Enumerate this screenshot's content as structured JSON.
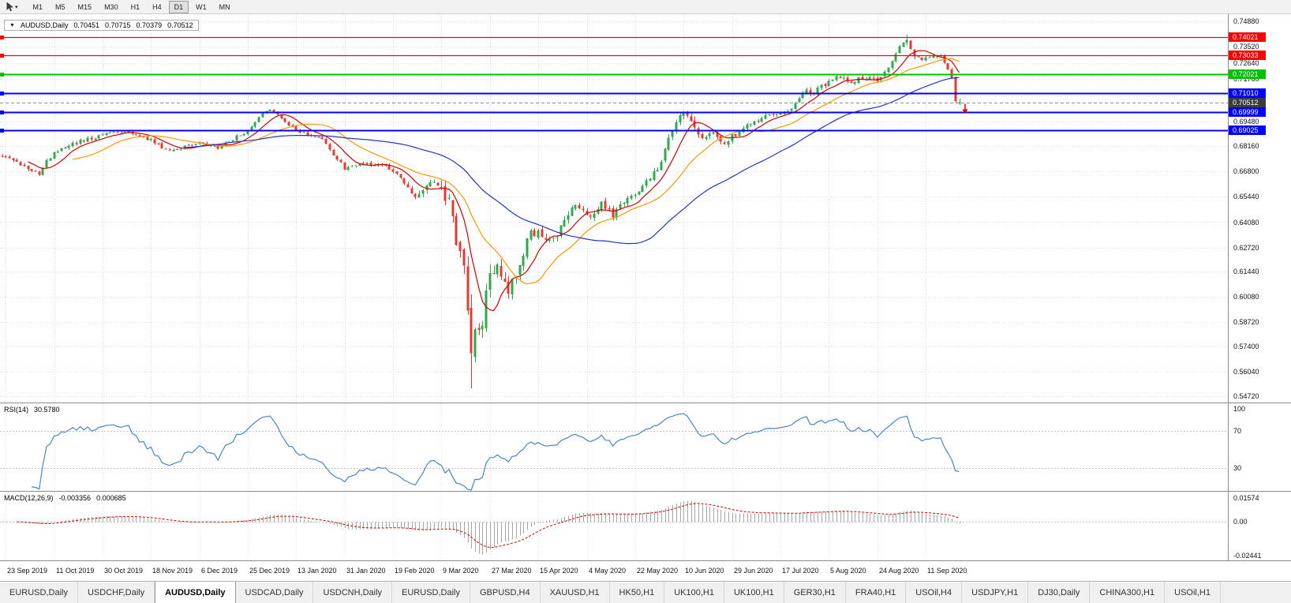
{
  "icons": {
    "expand": "▼",
    "caret": "▾"
  },
  "toolbar": {
    "timeframes": [
      {
        "label": "M1",
        "active": false
      },
      {
        "label": "M5",
        "active": false
      },
      {
        "label": "M15",
        "active": false
      },
      {
        "label": "M30",
        "active": false
      },
      {
        "label": "H1",
        "active": false
      },
      {
        "label": "H4",
        "active": false
      },
      {
        "label": "D1",
        "active": true
      },
      {
        "label": "W1",
        "active": false
      },
      {
        "label": "MN",
        "active": false
      }
    ]
  },
  "chart": {
    "header": {
      "symbol": "AUDUSD,Daily",
      "open": "0.70451",
      "high": "0.70715",
      "low": "0.70379",
      "close": "0.70512"
    },
    "price_axis_ticks": [
      "0.74880",
      "0.73520",
      "0.72640",
      "0.71760",
      "0.70880",
      "0.69480",
      "0.68160",
      "0.66800",
      "0.65440",
      "0.64080",
      "0.62720",
      "0.61440",
      "0.60080",
      "0.58720",
      "0.57400",
      "0.56040",
      "0.54720"
    ],
    "levels": [
      {
        "value": 0.74021,
        "label": "0.74021",
        "color": "#ff0000",
        "width": 1.2
      },
      {
        "value": 0.73033,
        "label": "0.73033",
        "color": "#ff0000",
        "width": 1.2
      },
      {
        "value": 0.72021,
        "label": "0.72021",
        "color": "#00c000",
        "width": 2
      },
      {
        "value": 0.7101,
        "label": "0.71010",
        "color": "#0000ff",
        "width": 2
      },
      {
        "value": 0.69999,
        "label": "0.69999",
        "color": "#0000ff",
        "width": 2
      },
      {
        "value": 0.69025,
        "label": "0.69025",
        "color": "#0000ff",
        "width": 2
      }
    ],
    "current_price": {
      "value": 0.70512,
      "label": "0.70512",
      "tag_color": "#3c3c3c"
    }
  },
  "chart_data": {
    "type": "candlestick",
    "symbol": "AUDUSD",
    "timeframe": "Daily",
    "bars": 258,
    "bar_spacing": 4.72,
    "seed": 1337,
    "price_scale": {
      "max": 0.7525,
      "min": 0.5439
    },
    "up_color": "#2fa84f",
    "down_color": "#e8382f",
    "anchors": [
      [
        0,
        0.677,
        0.0022
      ],
      [
        6,
        0.6712,
        0.0024
      ],
      [
        10,
        0.6672,
        0.0024
      ],
      [
        14,
        0.679,
        0.0024
      ],
      [
        20,
        0.6832,
        0.0022
      ],
      [
        27,
        0.688,
        0.002
      ],
      [
        33,
        0.6895,
        0.0018
      ],
      [
        40,
        0.6848,
        0.0018
      ],
      [
        45,
        0.679,
        0.0018
      ],
      [
        53,
        0.6832,
        0.0016
      ],
      [
        58,
        0.6806,
        0.0016
      ],
      [
        66,
        0.6902,
        0.0016
      ],
      [
        70,
        0.7,
        0.0015
      ],
      [
        72,
        0.7016,
        0.0015
      ],
      [
        79,
        0.6902,
        0.0016
      ],
      [
        86,
        0.6852,
        0.0016
      ],
      [
        92,
        0.6695,
        0.0018
      ],
      [
        97,
        0.6722,
        0.0016
      ],
      [
        103,
        0.6716,
        0.0016
      ],
      [
        108,
        0.6626,
        0.0022
      ],
      [
        111,
        0.6542,
        0.003
      ],
      [
        115,
        0.6602,
        0.0042
      ],
      [
        118,
        0.6586,
        0.007
      ],
      [
        120,
        0.649,
        0.0085
      ],
      [
        122,
        0.6312,
        0.01
      ],
      [
        124,
        0.615,
        0.012
      ],
      [
        126,
        0.5762,
        0.015
      ],
      [
        127,
        0.5802,
        0.013
      ],
      [
        129,
        0.5862,
        0.011
      ],
      [
        131,
        0.613,
        0.009
      ],
      [
        133,
        0.6152,
        0.007
      ],
      [
        136,
        0.6022,
        0.006
      ],
      [
        139,
        0.6182,
        0.0055
      ],
      [
        142,
        0.6352,
        0.005
      ],
      [
        144,
        0.6362,
        0.0046
      ],
      [
        147,
        0.6302,
        0.0044
      ],
      [
        150,
        0.6372,
        0.004
      ],
      [
        154,
        0.6512,
        0.004
      ],
      [
        157,
        0.6442,
        0.0038
      ],
      [
        161,
        0.6502,
        0.0035
      ],
      [
        164,
        0.6446,
        0.0034
      ],
      [
        168,
        0.6532,
        0.0032
      ],
      [
        170,
        0.6546,
        0.003
      ],
      [
        174,
        0.6652,
        0.0032
      ],
      [
        177,
        0.6732,
        0.0034
      ],
      [
        179,
        0.6872,
        0.0036
      ],
      [
        183,
        0.7002,
        0.0035
      ],
      [
        185,
        0.6932,
        0.004
      ],
      [
        187,
        0.6862,
        0.0038
      ],
      [
        191,
        0.6882,
        0.0032
      ],
      [
        194,
        0.6842,
        0.003
      ],
      [
        196,
        0.6866,
        0.0028
      ],
      [
        200,
        0.6922,
        0.0026
      ],
      [
        204,
        0.6966,
        0.0024
      ],
      [
        208,
        0.6982,
        0.0024
      ],
      [
        212,
        0.7012,
        0.0024
      ],
      [
        215,
        0.7112,
        0.0026
      ],
      [
        218,
        0.7102,
        0.0026
      ],
      [
        221,
        0.7152,
        0.0026
      ],
      [
        224,
        0.7186,
        0.0024
      ],
      [
        228,
        0.7162,
        0.0024
      ],
      [
        231,
        0.7182,
        0.0024
      ],
      [
        235,
        0.7172,
        0.0024
      ],
      [
        238,
        0.7242,
        0.0024
      ],
      [
        241,
        0.7366,
        0.0024
      ],
      [
        243,
        0.7396,
        0.0026
      ],
      [
        245,
        0.7312,
        0.0028
      ],
      [
        247,
        0.7282,
        0.0024
      ],
      [
        249,
        0.7302,
        0.0022
      ],
      [
        252,
        0.7306,
        0.0022
      ],
      [
        254,
        0.7232,
        0.0026
      ],
      [
        255,
        0.7172,
        0.0026
      ],
      [
        256,
        0.7064,
        0.0024
      ],
      [
        257,
        0.70512,
        0.002
      ]
    ],
    "spikes": [
      {
        "bar": 126,
        "low": 0.5515
      },
      {
        "bar": 243,
        "high": 0.7414
      }
    ],
    "last_candle": {
      "open": 0.70451,
      "high": 0.70715,
      "low": 0.70379,
      "close": 0.70512
    },
    "moving_averages": [
      {
        "period": 8,
        "color": "#d40000"
      },
      {
        "period": 20,
        "color": "#ff9900"
      },
      {
        "period": 50,
        "color": "#2233cc"
      }
    ],
    "x_labels": [
      "23 Sep 2019",
      "11 Oct 2019",
      "30 Oct 2019",
      "18 Nov 2019",
      "6 Dec 2019",
      "25 Dec 2019",
      "13 Jan 2020",
      "31 Jan 2020",
      "19 Feb 2020",
      "9 Mar 2020",
      "27 Mar 2020",
      "15 Apr 2020",
      "4 May 2020",
      "22 May 2020",
      "10 Jun 2020",
      "29 Jun 2020",
      "17 Jul 2020",
      "5 Aug 2020",
      "24 Aug 2020",
      "11 Sep 2020"
    ],
    "first_label_bar": 1,
    "label_step": 13
  },
  "rsi": {
    "name": "RSI(14)",
    "value": "30.5780",
    "period": 14,
    "color": "#4c86c8",
    "guides": [
      70,
      30
    ],
    "axis": [
      {
        "label": "100",
        "value": 100
      },
      {
        "label": "70",
        "value": 70
      },
      {
        "label": "30",
        "value": 30
      }
    ],
    "scale_max": 100,
    "scale_min": 5.5
  },
  "macd": {
    "name": "MACD(12,26,9)",
    "main_value": "-0.003356",
    "signal_value": "0.000685",
    "fast": 12,
    "slow": 26,
    "signal": 9,
    "hist_color": "#a6a6a6",
    "signal_color": "#d40000",
    "axis": [
      {
        "label": "0.01574",
        "value": 0.01574
      },
      {
        "label": "0.00",
        "value": 0
      },
      {
        "label": "-0.02441",
        "value": -0.02441
      }
    ],
    "scale_max": 0.0201,
    "scale_min": -0.0263
  },
  "tabs": [
    {
      "label": "EURUSD,Daily",
      "active": false
    },
    {
      "label": "USDCHF,Daily",
      "active": false
    },
    {
      "label": "AUDUSD,Daily",
      "active": true
    },
    {
      "label": "USDCAD,Daily",
      "active": false
    },
    {
      "label": "USDCNH,Daily",
      "active": false
    },
    {
      "label": "EURUSD,Daily",
      "active": false
    },
    {
      "label": "GBPUSD,H4",
      "active": false
    },
    {
      "label": "XAUUSD,H1",
      "active": false
    },
    {
      "label": "HK50,H1",
      "active": false
    },
    {
      "label": "UK100,H1",
      "active": false
    },
    {
      "label": "UK100,H1",
      "active": false
    },
    {
      "label": "GER30,H1",
      "active": false
    },
    {
      "label": "FRA40,H1",
      "active": false
    },
    {
      "label": "USOil,H4",
      "active": false
    },
    {
      "label": "USDJPY,H1",
      "active": false
    },
    {
      "label": "DJ30,Daily",
      "active": false
    },
    {
      "label": "CHINA300,H1",
      "active": false
    },
    {
      "label": "USOil,H1",
      "active": false
    }
  ]
}
